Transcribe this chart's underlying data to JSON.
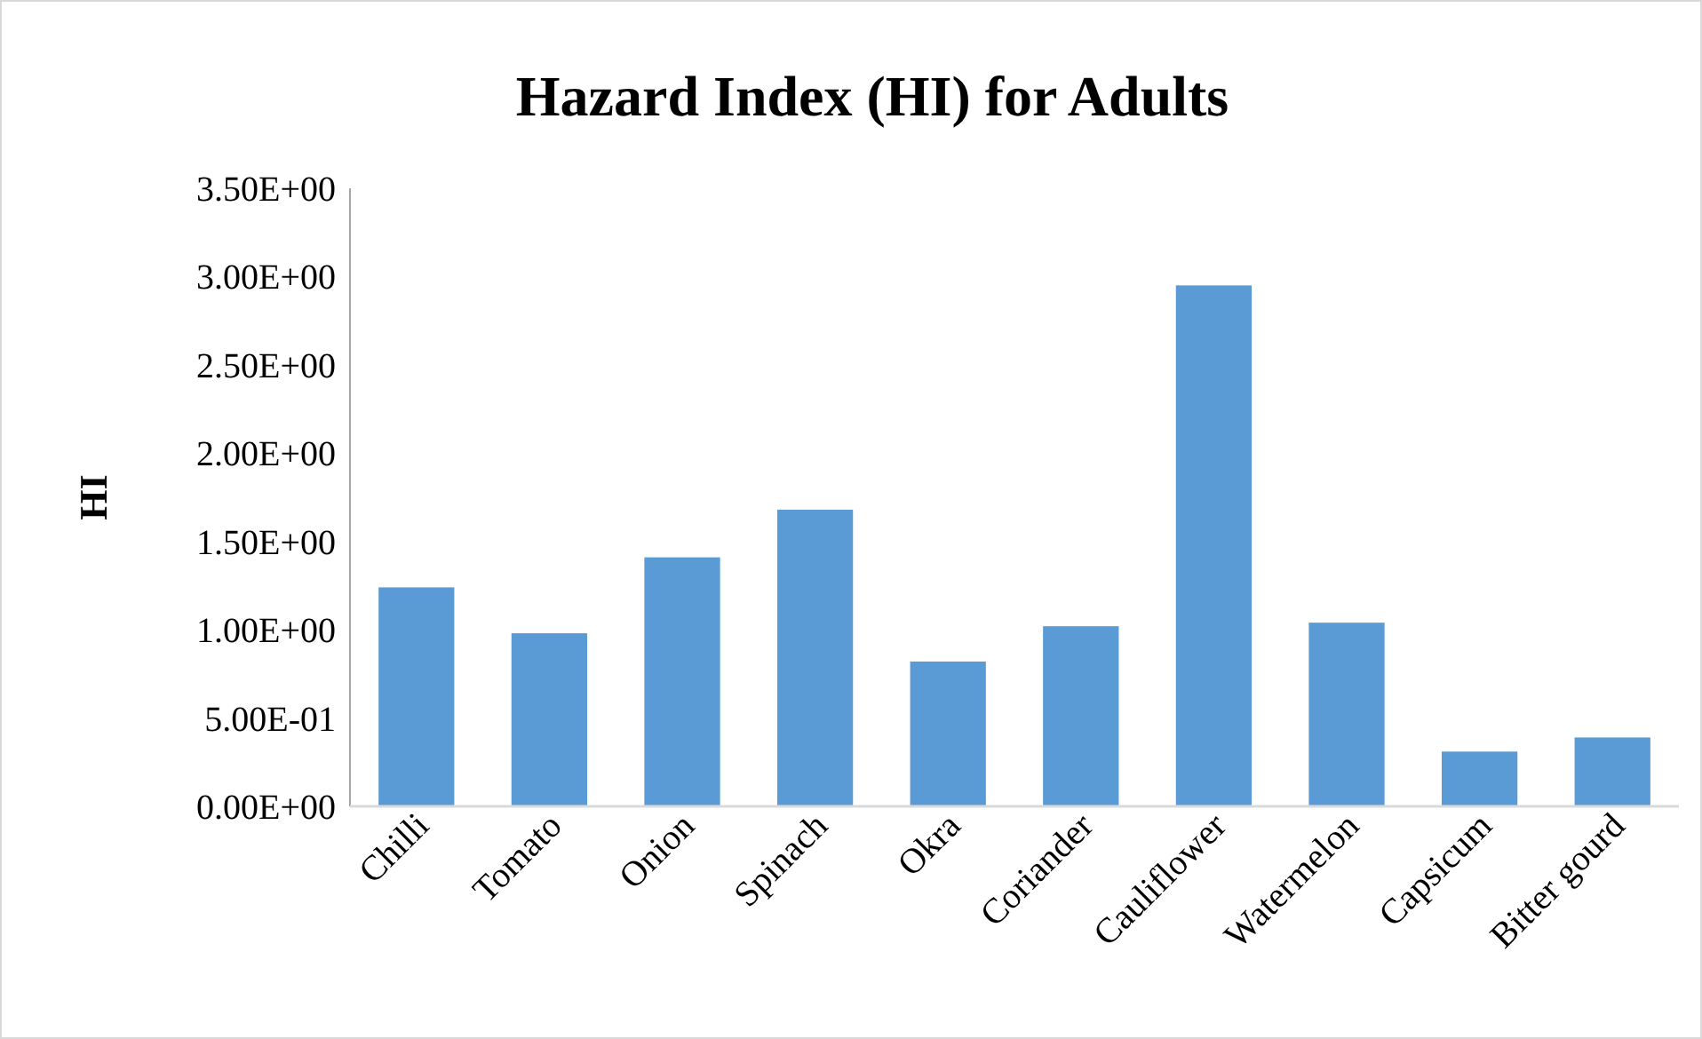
{
  "chart_data": {
    "type": "bar",
    "title": "Hazard Index (HI) for Adults",
    "ylabel": "HI",
    "categories": [
      "Chilli",
      "Tomato",
      "Onion",
      "Spinach",
      "Okra",
      "Coriander",
      "Cauliflower",
      "Watermelon",
      "Capsicum",
      "Bitter gourd"
    ],
    "values": [
      1.24,
      0.98,
      1.41,
      1.68,
      0.82,
      1.02,
      2.95,
      1.04,
      0.31,
      0.39
    ],
    "color": "#5b9bd5",
    "ylim": [
      0,
      3.5
    ],
    "yticks": [
      {
        "value": 0,
        "label": "0.00E+00"
      },
      {
        "value": 0.5,
        "label": "5.00E-01"
      },
      {
        "value": 1,
        "label": "1.00E+00"
      },
      {
        "value": 1.5,
        "label": "1.50E+00"
      },
      {
        "value": 2,
        "label": "2.00E+00"
      },
      {
        "value": 2.5,
        "label": "2.50E+00"
      },
      {
        "value": 3,
        "label": "3.00E+00"
      },
      {
        "value": 3.5,
        "label": "3.50E+00"
      }
    ],
    "grid": false
  }
}
